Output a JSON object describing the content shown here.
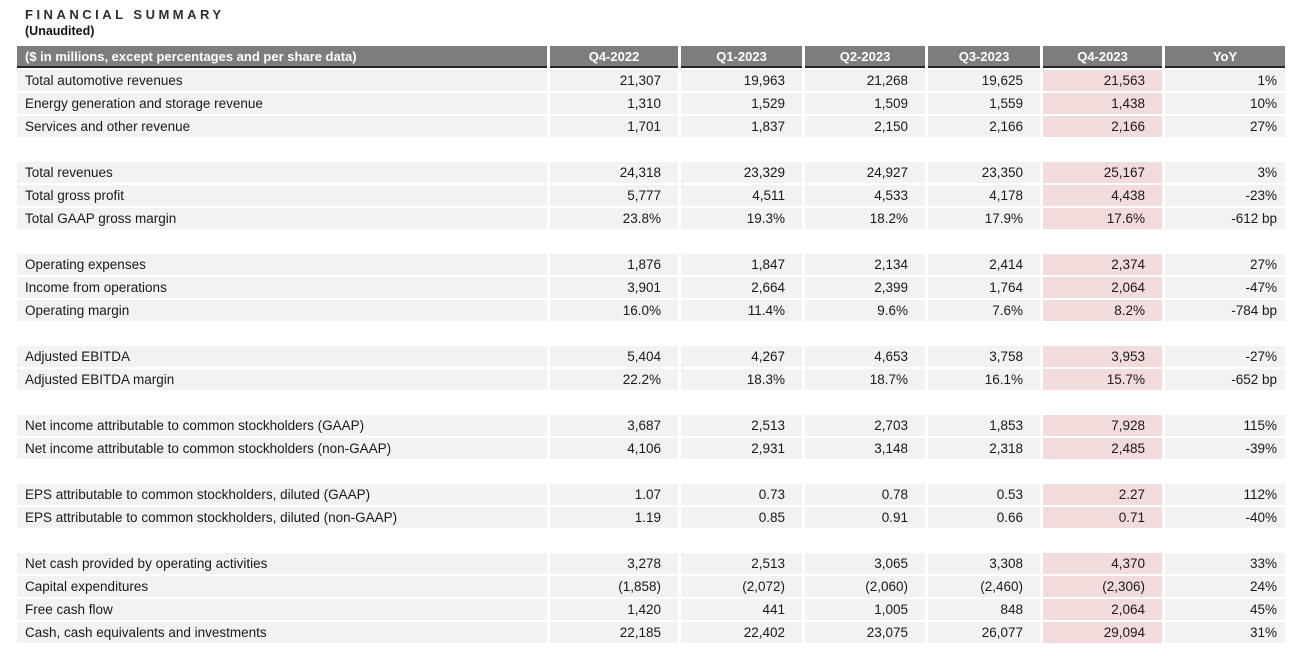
{
  "header": {
    "title": "FINANCIAL SUMMARY",
    "subtitle": "(Unaudited)"
  },
  "colors": {
    "table_header_bg": "#7d7d7d",
    "table_header_text": "#ffffff",
    "row_bg": "#f2f2f2",
    "highlight_column_bg": "#f2dcdb",
    "header_bottom_border": "#262626",
    "text": "#191919"
  },
  "chart_data": {
    "type": "table",
    "title": "FINANCIAL SUMMARY (Unaudited)",
    "columns": [
      "($ in millions, except percentages and per share data)",
      "Q4-2022",
      "Q1-2023",
      "Q2-2023",
      "Q3-2023",
      "Q4-2023",
      "YoY"
    ],
    "highlight_column": "Q4-2023",
    "sections": [
      {
        "rows": [
          {
            "label": "Total automotive revenues",
            "values": [
              "21,307",
              "19,963",
              "21,268",
              "19,625",
              "21,563",
              "1%"
            ]
          },
          {
            "label": "Energy generation and storage revenue",
            "values": [
              "1,310",
              "1,529",
              "1,509",
              "1,559",
              "1,438",
              "10%"
            ]
          },
          {
            "label": "Services and other revenue",
            "values": [
              "1,701",
              "1,837",
              "2,150",
              "2,166",
              "2,166",
              "27%"
            ]
          }
        ]
      },
      {
        "rows": [
          {
            "label": "Total revenues",
            "values": [
              "24,318",
              "23,329",
              "24,927",
              "23,350",
              "25,167",
              "3%"
            ]
          },
          {
            "label": "Total gross profit",
            "values": [
              "5,777",
              "4,511",
              "4,533",
              "4,178",
              "4,438",
              "-23%"
            ]
          },
          {
            "label": "Total GAAP gross margin",
            "values": [
              "23.8%",
              "19.3%",
              "18.2%",
              "17.9%",
              "17.6%",
              "-612 bp"
            ]
          }
        ]
      },
      {
        "rows": [
          {
            "label": "Operating expenses",
            "values": [
              "1,876",
              "1,847",
              "2,134",
              "2,414",
              "2,374",
              "27%"
            ]
          },
          {
            "label": "Income from operations",
            "values": [
              "3,901",
              "2,664",
              "2,399",
              "1,764",
              "2,064",
              "-47%"
            ]
          },
          {
            "label": "Operating margin",
            "values": [
              "16.0%",
              "11.4%",
              "9.6%",
              "7.6%",
              "8.2%",
              "-784 bp"
            ]
          }
        ]
      },
      {
        "rows": [
          {
            "label": "Adjusted EBITDA",
            "values": [
              "5,404",
              "4,267",
              "4,653",
              "3,758",
              "3,953",
              "-27%"
            ]
          },
          {
            "label": "Adjusted EBITDA margin",
            "values": [
              "22.2%",
              "18.3%",
              "18.7%",
              "16.1%",
              "15.7%",
              "-652 bp"
            ]
          }
        ]
      },
      {
        "rows": [
          {
            "label": "Net income attributable to common stockholders (GAAP)",
            "values": [
              "3,687",
              "2,513",
              "2,703",
              "1,853",
              "7,928",
              "115%"
            ]
          },
          {
            "label": "Net income attributable to common stockholders (non-GAAP)",
            "values": [
              "4,106",
              "2,931",
              "3,148",
              "2,318",
              "2,485",
              "-39%"
            ]
          }
        ]
      },
      {
        "rows": [
          {
            "label": "EPS attributable to common stockholders, diluted (GAAP)",
            "values": [
              "1.07",
              "0.73",
              "0.78",
              "0.53",
              "2.27",
              "112%"
            ]
          },
          {
            "label": "EPS attributable to common stockholders, diluted (non-GAAP)",
            "values": [
              "1.19",
              "0.85",
              "0.91",
              "0.66",
              "0.71",
              "-40%"
            ]
          }
        ]
      },
      {
        "rows": [
          {
            "label": "Net cash provided by operating activities",
            "values": [
              "3,278",
              "2,513",
              "3,065",
              "3,308",
              "4,370",
              "33%"
            ]
          },
          {
            "label": "Capital expenditures",
            "values": [
              "(1,858)",
              "(2,072)",
              "(2,060)",
              "(2,460)",
              "(2,306)",
              "24%"
            ]
          },
          {
            "label": "Free cash flow",
            "values": [
              "1,420",
              "441",
              "1,005",
              "848",
              "2,064",
              "45%"
            ]
          },
          {
            "label": "Cash, cash equivalents and investments",
            "values": [
              "22,185",
              "22,402",
              "23,075",
              "26,077",
              "29,094",
              "31%"
            ]
          }
        ]
      }
    ]
  }
}
